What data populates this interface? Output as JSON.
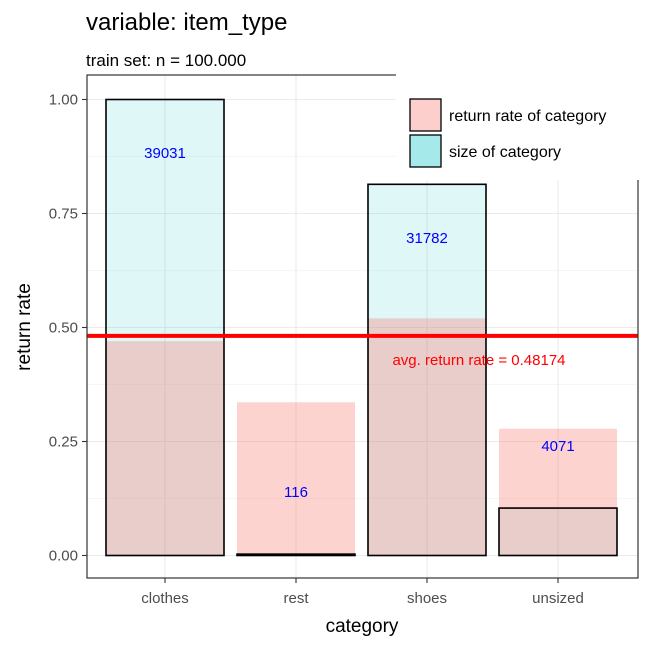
{
  "colors": {
    "return_rate_fill": "#f8766d",
    "size_fill": "#00bfc4",
    "avg_line": "#ff0000",
    "count_label": "#0000ff",
    "grid": "#ebebeb"
  },
  "chart_data": {
    "type": "bar",
    "title": "variable: item_type",
    "subtitle": "train set: n = 100.000",
    "xlabel": "category",
    "ylabel": "return rate",
    "ylim": [
      0,
      1
    ],
    "y_ticks": [
      "0.00",
      "0.25",
      "0.50",
      "0.75",
      "1.00"
    ],
    "y_tick_values": [
      0,
      0.25,
      0.5,
      0.75,
      1.0
    ],
    "categories": [
      "clothes",
      "rest",
      "shoes",
      "unsized"
    ],
    "series": [
      {
        "name": "return rate of category",
        "values": [
          0.47,
          0.336,
          0.52,
          0.278
        ]
      },
      {
        "name": "size of category",
        "values": [
          1.0,
          0.003,
          0.814,
          0.104
        ]
      }
    ],
    "counts": [
      "39031",
      "116",
      "31782",
      "4071"
    ],
    "avg_return_rate": 0.48174,
    "avg_label": "avg. return rate = 0.48174",
    "legend_position": "top-right",
    "grid": true
  }
}
